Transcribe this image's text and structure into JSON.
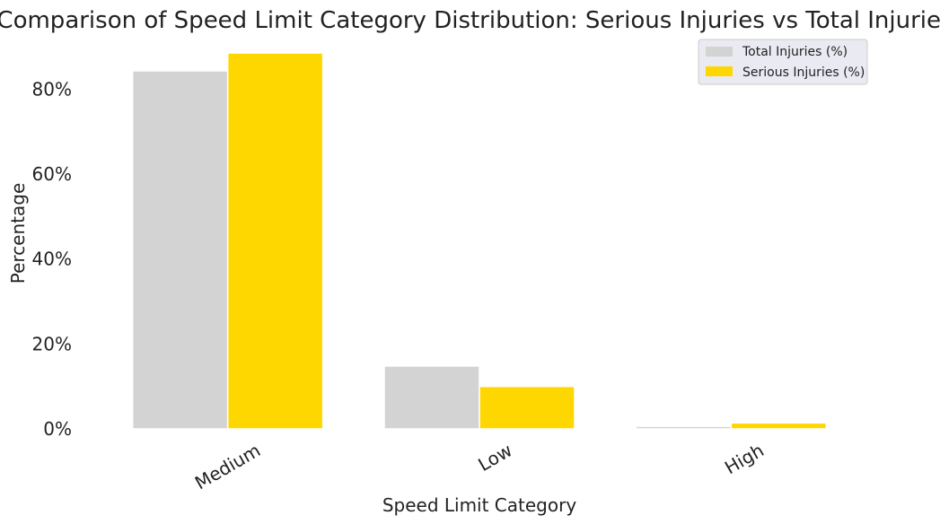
{
  "chart_data": {
    "type": "bar",
    "title": "Comparison of Speed Limit Category Distribution: Serious Injuries vs Total Injuries",
    "xlabel": "Speed Limit Category",
    "ylabel": "Percentage",
    "categories": [
      "Medium",
      "Low",
      "High"
    ],
    "series": [
      {
        "name": "Total Injuries (%)",
        "color": "#d3d3d3",
        "values": [
          84.3,
          14.8,
          0.6
        ]
      },
      {
        "name": "Serious Injuries (%)",
        "color": "#ffd700",
        "values": [
          88.5,
          10.0,
          1.4
        ]
      }
    ],
    "yticks": [
      0,
      20,
      40,
      60,
      80
    ],
    "ytick_labels": [
      "0%",
      "20%",
      "40%",
      "60%",
      "80%"
    ],
    "ylim": [
      0,
      90
    ],
    "grid": false,
    "legend": "top-right"
  }
}
